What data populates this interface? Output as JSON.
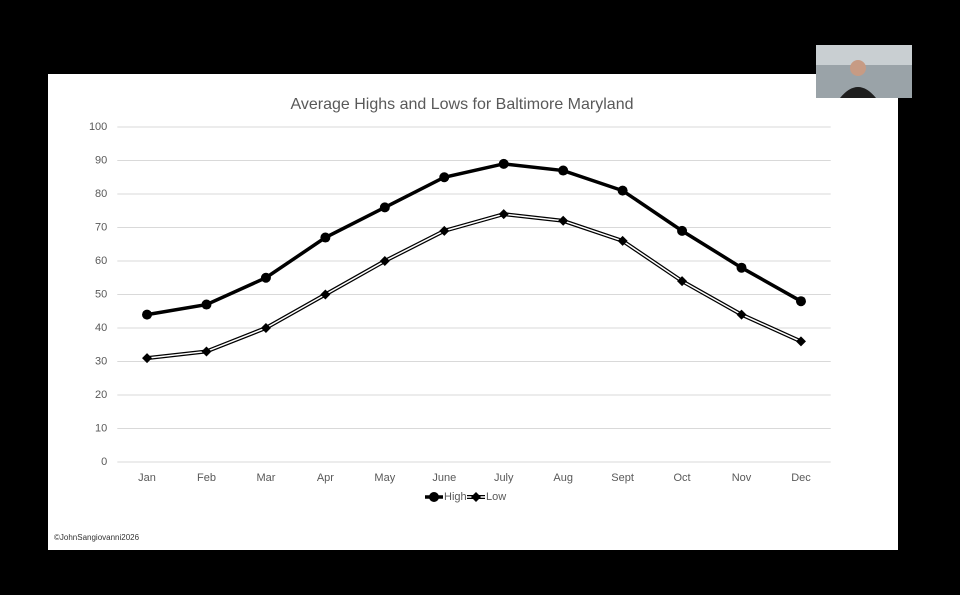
{
  "chart_data": {
    "type": "line",
    "title": "Average Highs and Lows for Baltimore Maryland",
    "categories": [
      "Jan",
      "Feb",
      "Mar",
      "Apr",
      "May",
      "June",
      "July",
      "Aug",
      "Sept",
      "Oct",
      "Nov",
      "Dec"
    ],
    "series": [
      {
        "name": "High",
        "color": "#000000",
        "marker": "circle",
        "values": [
          44,
          47,
          55,
          67,
          76,
          85,
          89,
          87,
          81,
          69,
          58,
          48
        ]
      },
      {
        "name": "Low",
        "color": "#000000",
        "marker": "diamond",
        "values": [
          31,
          33,
          40,
          50,
          60,
          69,
          74,
          72,
          66,
          54,
          44,
          36
        ]
      }
    ],
    "ylim": [
      0,
      100
    ],
    "yticks": [
      0,
      10,
      20,
      30,
      40,
      50,
      60,
      70,
      80,
      90,
      100
    ],
    "grid": true,
    "legend": "bottom",
    "annotations": [
      "©JohnSangiovanni2026"
    ]
  }
}
